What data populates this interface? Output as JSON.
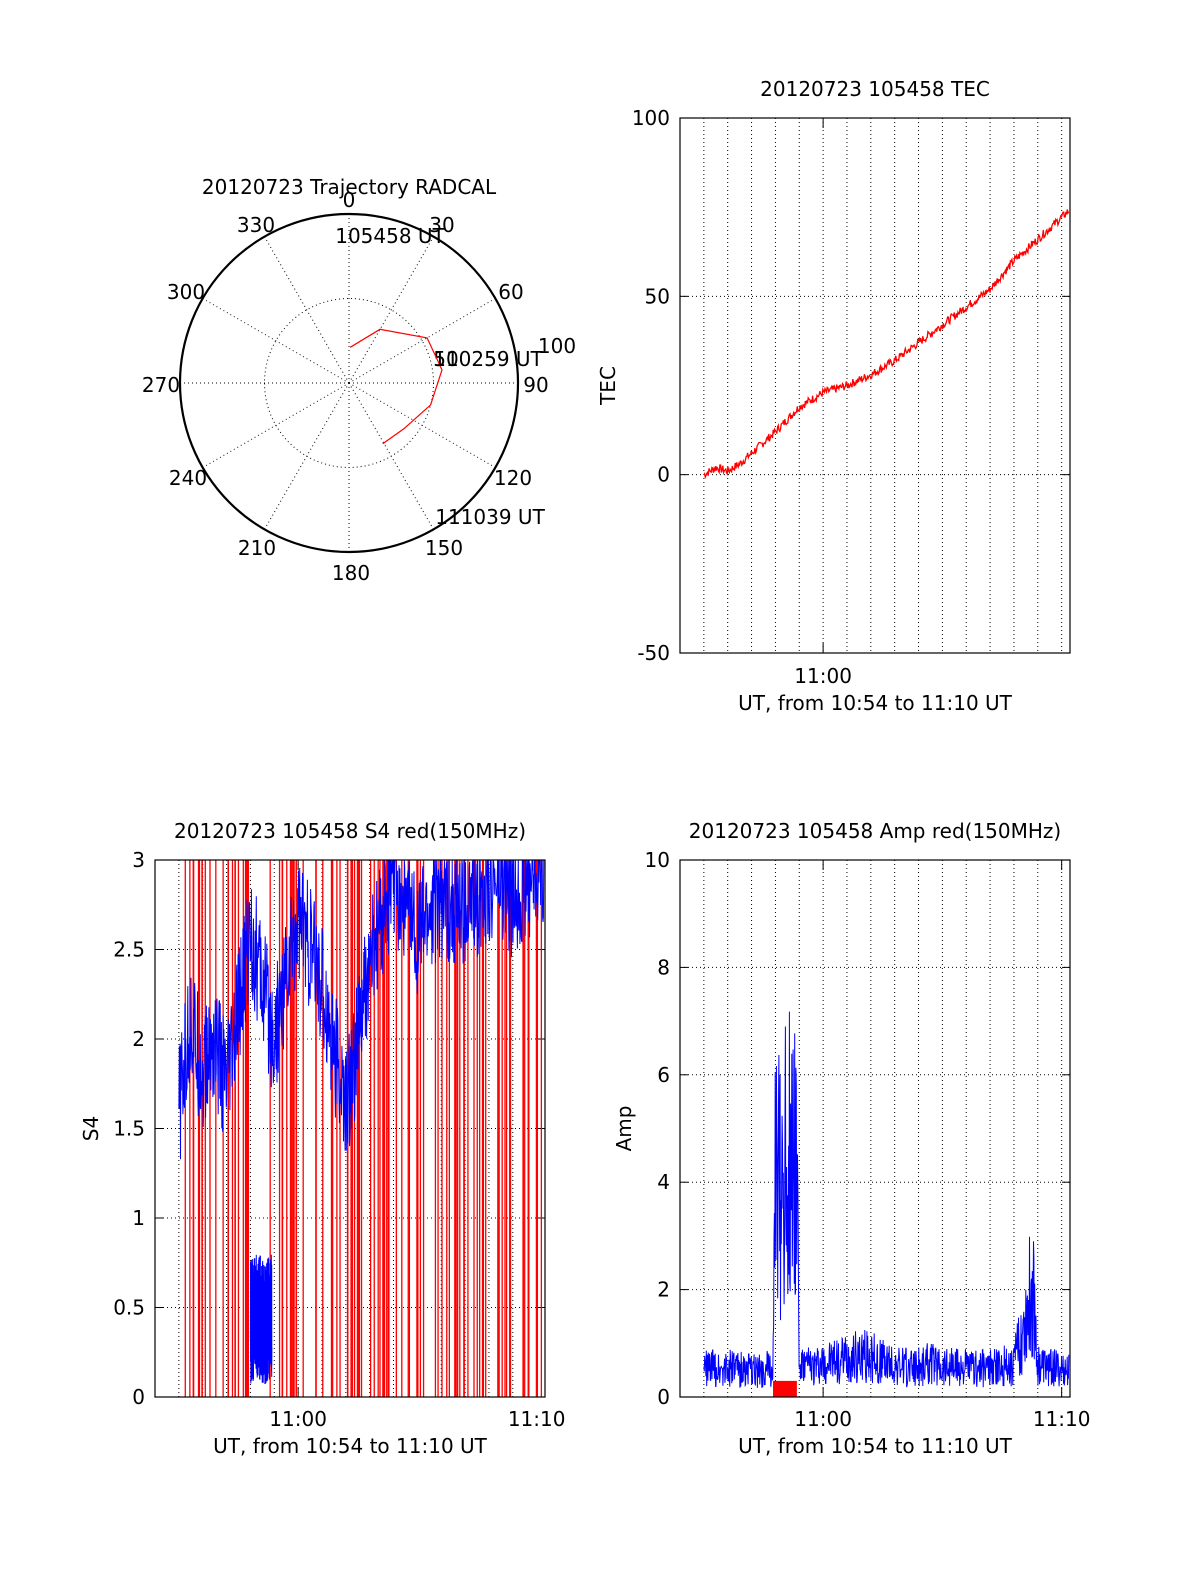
{
  "colors": {
    "primary": "#ff0000",
    "secondary": "#0000ff",
    "axis": "#000000"
  },
  "chart_data": [
    {
      "type": "polar-trajectory",
      "title": "20120723 Trajectory RADCAL",
      "azimuth_labels": [
        "0",
        "30",
        "60",
        "90",
        "120",
        "150",
        "180",
        "210",
        "240",
        "270",
        "300",
        "330"
      ],
      "ring_labels": [
        "50",
        "100"
      ],
      "trajectory": {
        "color": "#ff0000",
        "points": [
          {
            "az": 2,
            "el": 71
          },
          {
            "az": 30,
            "el": 57
          },
          {
            "az": 60,
            "el": 42
          },
          {
            "az": 82,
            "el": 40
          },
          {
            "az": 105,
            "el": 45
          },
          {
            "az": 130,
            "el": 52
          },
          {
            "az": 151,
            "el": 53
          }
        ],
        "labels": {
          "start": "105458 UT",
          "mid": "110259 UT",
          "end": "111039 UT"
        }
      }
    },
    {
      "type": "line",
      "title": "20120723 105458 TEC",
      "xlabel": "UT, from 10:54 to 11:10 UT",
      "ylabel": "TEC",
      "xlim": [
        0,
        16.35
      ],
      "ylim": [
        -50,
        100
      ],
      "yticks": [
        -50,
        0,
        50,
        100
      ],
      "xticks": [
        {
          "x": 6,
          "label": "11:00"
        }
      ],
      "grid": true,
      "series": [
        {
          "color": "#ff0000",
          "x": [
            1.0,
            1.5,
            2.0,
            2.5,
            3.0,
            4.0,
            5.0,
            6.0,
            7.0,
            8.0,
            9.0,
            10.0,
            11.0,
            12.0,
            13.0,
            14.0,
            15.0,
            16.3
          ],
          "y": [
            0,
            2,
            1,
            3,
            6,
            12,
            19,
            23,
            25,
            28,
            32,
            37,
            42,
            47,
            52,
            60,
            66,
            74
          ]
        }
      ]
    },
    {
      "type": "line",
      "title": "20120723 105458 S4 red(150MHz)",
      "xlabel": "UT, from 10:54 to 11:10 UT",
      "ylabel": "S4",
      "xlim": [
        0,
        16.35
      ],
      "ylim": [
        0,
        3
      ],
      "yticks": [
        0,
        0.5,
        1,
        1.5,
        2,
        2.5,
        3
      ],
      "ytick_labels": [
        "0",
        "0.5",
        "1",
        "1.5",
        "2",
        "2.5",
        "3"
      ],
      "xticks": [
        {
          "x": 6,
          "label": "11:00"
        },
        {
          "x": 16,
          "label": "11:10"
        }
      ],
      "grid": true,
      "series": [
        {
          "color": "#0000ff",
          "x": [
            1.0,
            1.5,
            2.0,
            2.5,
            3.0,
            4.0,
            5.0,
            6.0,
            7.0,
            8.0,
            9.0,
            10.0,
            11.0,
            12.0,
            13.0,
            14.0,
            15.0,
            16.3
          ],
          "y": [
            1.6,
            2.1,
            1.8,
            2.0,
            1.7,
            2.6,
            2.0,
            2.7,
            2.3,
            1.6,
            2.4,
            2.9,
            2.6,
            2.8,
            2.7,
            2.9,
            2.8,
            3.0
          ]
        },
        {
          "color": "#0000ff",
          "x": [
            4.0,
            4.3,
            4.6,
            4.9
          ],
          "y": [
            0.42,
            0.46,
            0.41,
            0.45
          ]
        }
      ]
    },
    {
      "type": "line",
      "title": "20120723 105458 Amp red(150MHz)",
      "xlabel": "UT, from 10:54 to 11:10 UT",
      "ylabel": "Amp",
      "xlim": [
        0,
        16.35
      ],
      "ylim": [
        0,
        10
      ],
      "yticks": [
        0,
        2,
        4,
        6,
        8,
        10
      ],
      "xticks": [
        {
          "x": 6,
          "label": "11:00"
        },
        {
          "x": 16,
          "label": "11:10"
        }
      ],
      "grid": true,
      "series": [
        {
          "color": "#0000ff",
          "x": [
            1.0,
            2.0,
            3.0,
            3.9,
            4.0,
            4.5,
            4.9,
            5.0,
            6.0,
            7.0,
            8.0,
            9.0,
            10.0,
            11.0,
            12.0,
            13.0,
            14.0,
            14.8,
            15.0,
            16.3
          ],
          "y": [
            0.9,
            0.9,
            0.8,
            0.9,
            6.5,
            7.3,
            7.8,
            0.9,
            1.0,
            1.2,
            1.3,
            0.9,
            1.0,
            1.0,
            0.9,
            0.9,
            1.0,
            3.5,
            1.0,
            0.8
          ]
        },
        {
          "color": "#ff0000",
          "x": [
            3.9,
            4.9
          ],
          "y": [
            0.3,
            0.3
          ]
        }
      ]
    }
  ]
}
